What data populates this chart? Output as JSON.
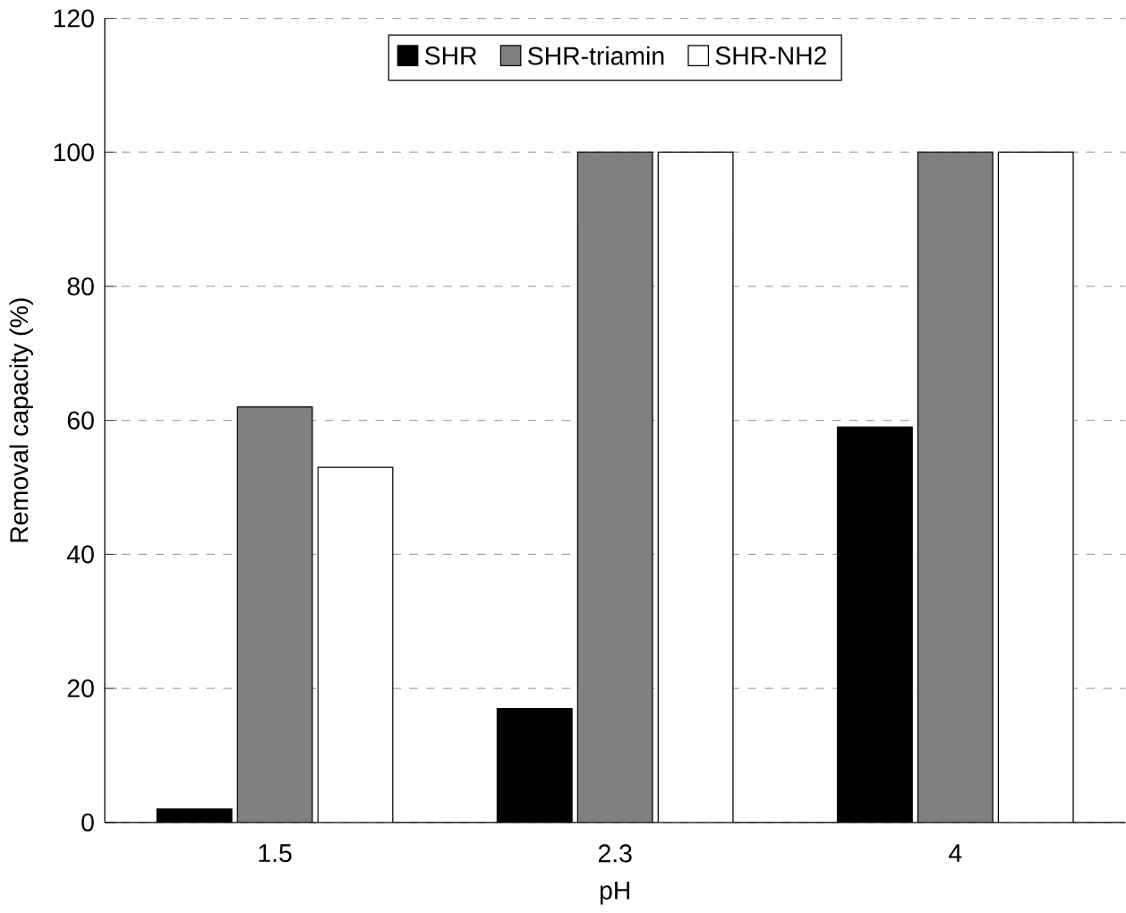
{
  "chart_data": {
    "type": "bar",
    "xlabel": "pH",
    "ylabel": "Removal capacity (%)",
    "categories": [
      "1.5",
      "2.3",
      "4"
    ],
    "series": [
      {
        "name": "SHR",
        "color": "#000000",
        "values": [
          2,
          17,
          59
        ]
      },
      {
        "name": "SHR-triamin",
        "color": "#808080",
        "values": [
          62,
          100,
          100
        ]
      },
      {
        "name": "SHR-NH2",
        "color": "#ffffff",
        "values": [
          53,
          100,
          100
        ]
      }
    ],
    "ylim": [
      0,
      120
    ],
    "yticks": [
      0,
      20,
      40,
      60,
      80,
      100,
      120
    ],
    "grid": "y",
    "legend": "top"
  }
}
